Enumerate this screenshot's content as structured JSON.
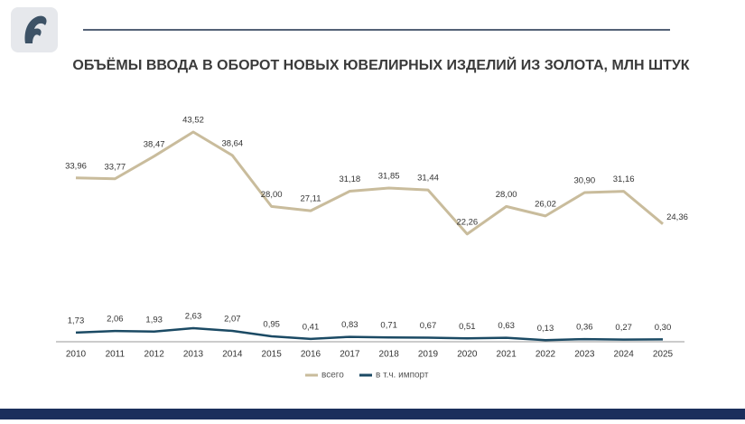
{
  "chart_data": {
    "type": "line",
    "title": "ОБЪЁМЫ ВВОДА В ОБОРОТ НОВЫХ ЮВЕЛИРНЫХ ИЗДЕЛИЙ ИЗ ЗОЛОТА, МЛН ШТУК",
    "categories": [
      "2010",
      "2011",
      "2012",
      "2013",
      "2014",
      "2015",
      "2016",
      "2017",
      "2018",
      "2019",
      "2020",
      "2021",
      "2022",
      "2023",
      "2024",
      "2025"
    ],
    "series": [
      {
        "name": "всего",
        "color": "#c9bc9c",
        "values": [
          33.96,
          33.77,
          38.47,
          43.52,
          38.64,
          28.0,
          27.11,
          31.18,
          31.85,
          31.44,
          22.26,
          28.0,
          26.02,
          30.9,
          31.16,
          24.36
        ],
        "value_labels": [
          "33,96",
          "33,77",
          "38,47",
          "43,52",
          "38,64",
          "28,00",
          "27,11",
          "31,18",
          "31,85",
          "31,44",
          "22,26",
          "28,00",
          "26,02",
          "30,90",
          "31,16",
          "24,36"
        ]
      },
      {
        "name": "в т.ч. импорт",
        "color": "#1b4a64",
        "values": [
          1.73,
          2.06,
          1.93,
          2.63,
          2.07,
          0.95,
          0.41,
          0.83,
          0.71,
          0.67,
          0.51,
          0.63,
          0.13,
          0.36,
          0.27,
          0.3
        ],
        "value_labels": [
          "1,73",
          "2,06",
          "1,93",
          "2,63",
          "2,07",
          "0,95",
          "0,41",
          "0,83",
          "0,71",
          "0,67",
          "0,51",
          "0,63",
          "0,13",
          "0,36",
          "0,27",
          "0,30"
        ]
      }
    ]
  }
}
